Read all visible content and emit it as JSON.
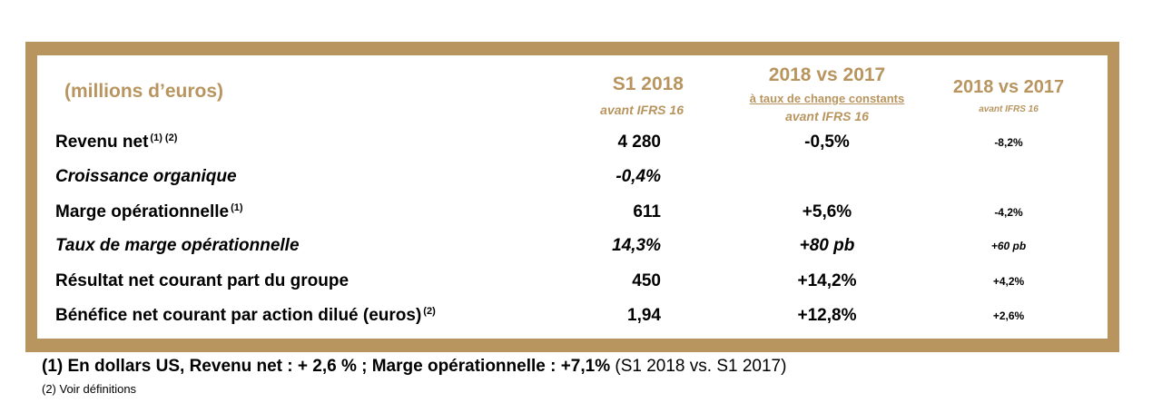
{
  "header": {
    "title": "(millions d’euros)",
    "col1": "S1 2018",
    "col1_sub": "avant IFRS 16",
    "col2": "2018 vs 2017",
    "col2_sub1": "à taux de change constants",
    "col2_sub2": "avant IFRS 16",
    "col3": "2018 vs 2017",
    "col3_sub": "avant IFRS 16"
  },
  "rows": [
    {
      "label": "Revenu net",
      "sup": "(1) (2)",
      "v1": "4 280",
      "v2": "-0,5%",
      "v3": "-8,2%"
    },
    {
      "label": "Croissance organique",
      "sup": "",
      "v1": "-0,4%",
      "v2": "",
      "v3": ""
    },
    {
      "label": "Marge opérationnelle",
      "sup": "(1)",
      "v1": "611",
      "v2": "+5,6%",
      "v3": "-4,2%"
    },
    {
      "label": "Taux de marge opérationnelle",
      "sup": "",
      "v1": "14,3%",
      "v2": "+80 pb",
      "v3": "+60 pb"
    },
    {
      "label": "Résultat net courant part du groupe",
      "sup": "",
      "v1": "450",
      "v2": "+14,2%",
      "v3": "+4,2%"
    },
    {
      "label": "Bénéfice net courant par action dilué (euros)",
      "sup": "(2)",
      "v1": "1,94",
      "v2": "+12,8%",
      "v3": "+2,6%"
    }
  ],
  "footnotes": {
    "note1_bold": "(1) En dollars US, Revenu net : + 2,6 % ; Marge opérationnelle : +7,1%",
    "note1_rest": " (S1 2018 vs. S1 2017)",
    "note2": "(2)   Voir définitions"
  },
  "colors": {
    "accent": "#b8955f"
  }
}
